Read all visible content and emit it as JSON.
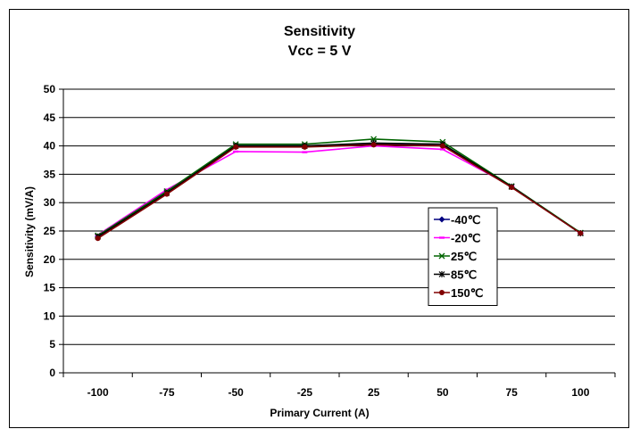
{
  "chart_data": {
    "type": "line",
    "title": "Sensitivity",
    "subtitle": "Vcc = 5 V",
    "xlabel": "Primary Current (A)",
    "ylabel": "Sensitivity (mV/A)",
    "categories": [
      "-100",
      "-75",
      "-50",
      "-25",
      "25",
      "50",
      "75",
      "100"
    ],
    "ylim": [
      0,
      50
    ],
    "yticks": [
      0,
      5,
      10,
      15,
      20,
      25,
      30,
      35,
      40,
      45,
      50
    ],
    "grid": true,
    "legend_position": "right",
    "series": [
      {
        "name": "-40℃",
        "color": "#000080",
        "marker": "diamond",
        "values": [
          24.0,
          31.8,
          40.0,
          40.0,
          40.3,
          40.3,
          32.8,
          24.6
        ]
      },
      {
        "name": "-20℃",
        "color": "#ff00ff",
        "marker": "dash",
        "values": [
          24.3,
          32.3,
          39.0,
          38.9,
          40.0,
          39.4,
          32.9,
          24.6
        ]
      },
      {
        "name": "25℃",
        "color": "#006400",
        "marker": "x",
        "values": [
          24.2,
          32.0,
          40.3,
          40.3,
          41.2,
          40.7,
          32.9,
          24.7
        ]
      },
      {
        "name": "85℃",
        "color": "#000000",
        "marker": "star",
        "values": [
          24.0,
          31.7,
          40.0,
          40.0,
          40.5,
          40.3,
          32.8,
          24.6
        ]
      },
      {
        "name": "150℃",
        "color": "#800000",
        "marker": "circle",
        "values": [
          23.7,
          31.5,
          39.8,
          39.8,
          40.2,
          40.0,
          32.7,
          24.6
        ]
      }
    ]
  }
}
